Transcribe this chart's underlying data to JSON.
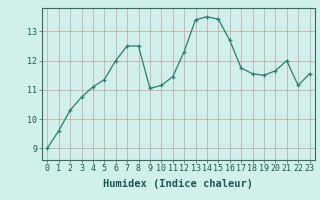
{
  "x": [
    0,
    1,
    2,
    3,
    4,
    5,
    6,
    7,
    8,
    9,
    10,
    11,
    12,
    13,
    14,
    15,
    16,
    17,
    18,
    19,
    20,
    21,
    22,
    23
  ],
  "y": [
    9.0,
    9.6,
    10.3,
    10.75,
    11.1,
    11.35,
    12.0,
    12.5,
    12.5,
    11.05,
    11.15,
    11.45,
    12.3,
    13.4,
    13.5,
    13.42,
    12.7,
    11.75,
    11.55,
    11.5,
    11.65,
    12.0,
    11.15,
    11.55
  ],
  "xlabel": "Humidex (Indice chaleur)",
  "line_color": "#2e7d6e",
  "marker_color": "#2e7d6e",
  "bg_color": "#cff0eb",
  "grid_color": "#c8a0a0",
  "ylim": [
    8.6,
    13.8
  ],
  "xlim": [
    -0.5,
    23.5
  ],
  "yticks": [
    9,
    10,
    11,
    12,
    13
  ],
  "xticks": [
    0,
    1,
    2,
    3,
    4,
    5,
    6,
    7,
    8,
    9,
    10,
    11,
    12,
    13,
    14,
    15,
    16,
    17,
    18,
    19,
    20,
    21,
    22,
    23
  ],
  "tick_fontsize": 6.0,
  "xlabel_fontsize": 7.5
}
